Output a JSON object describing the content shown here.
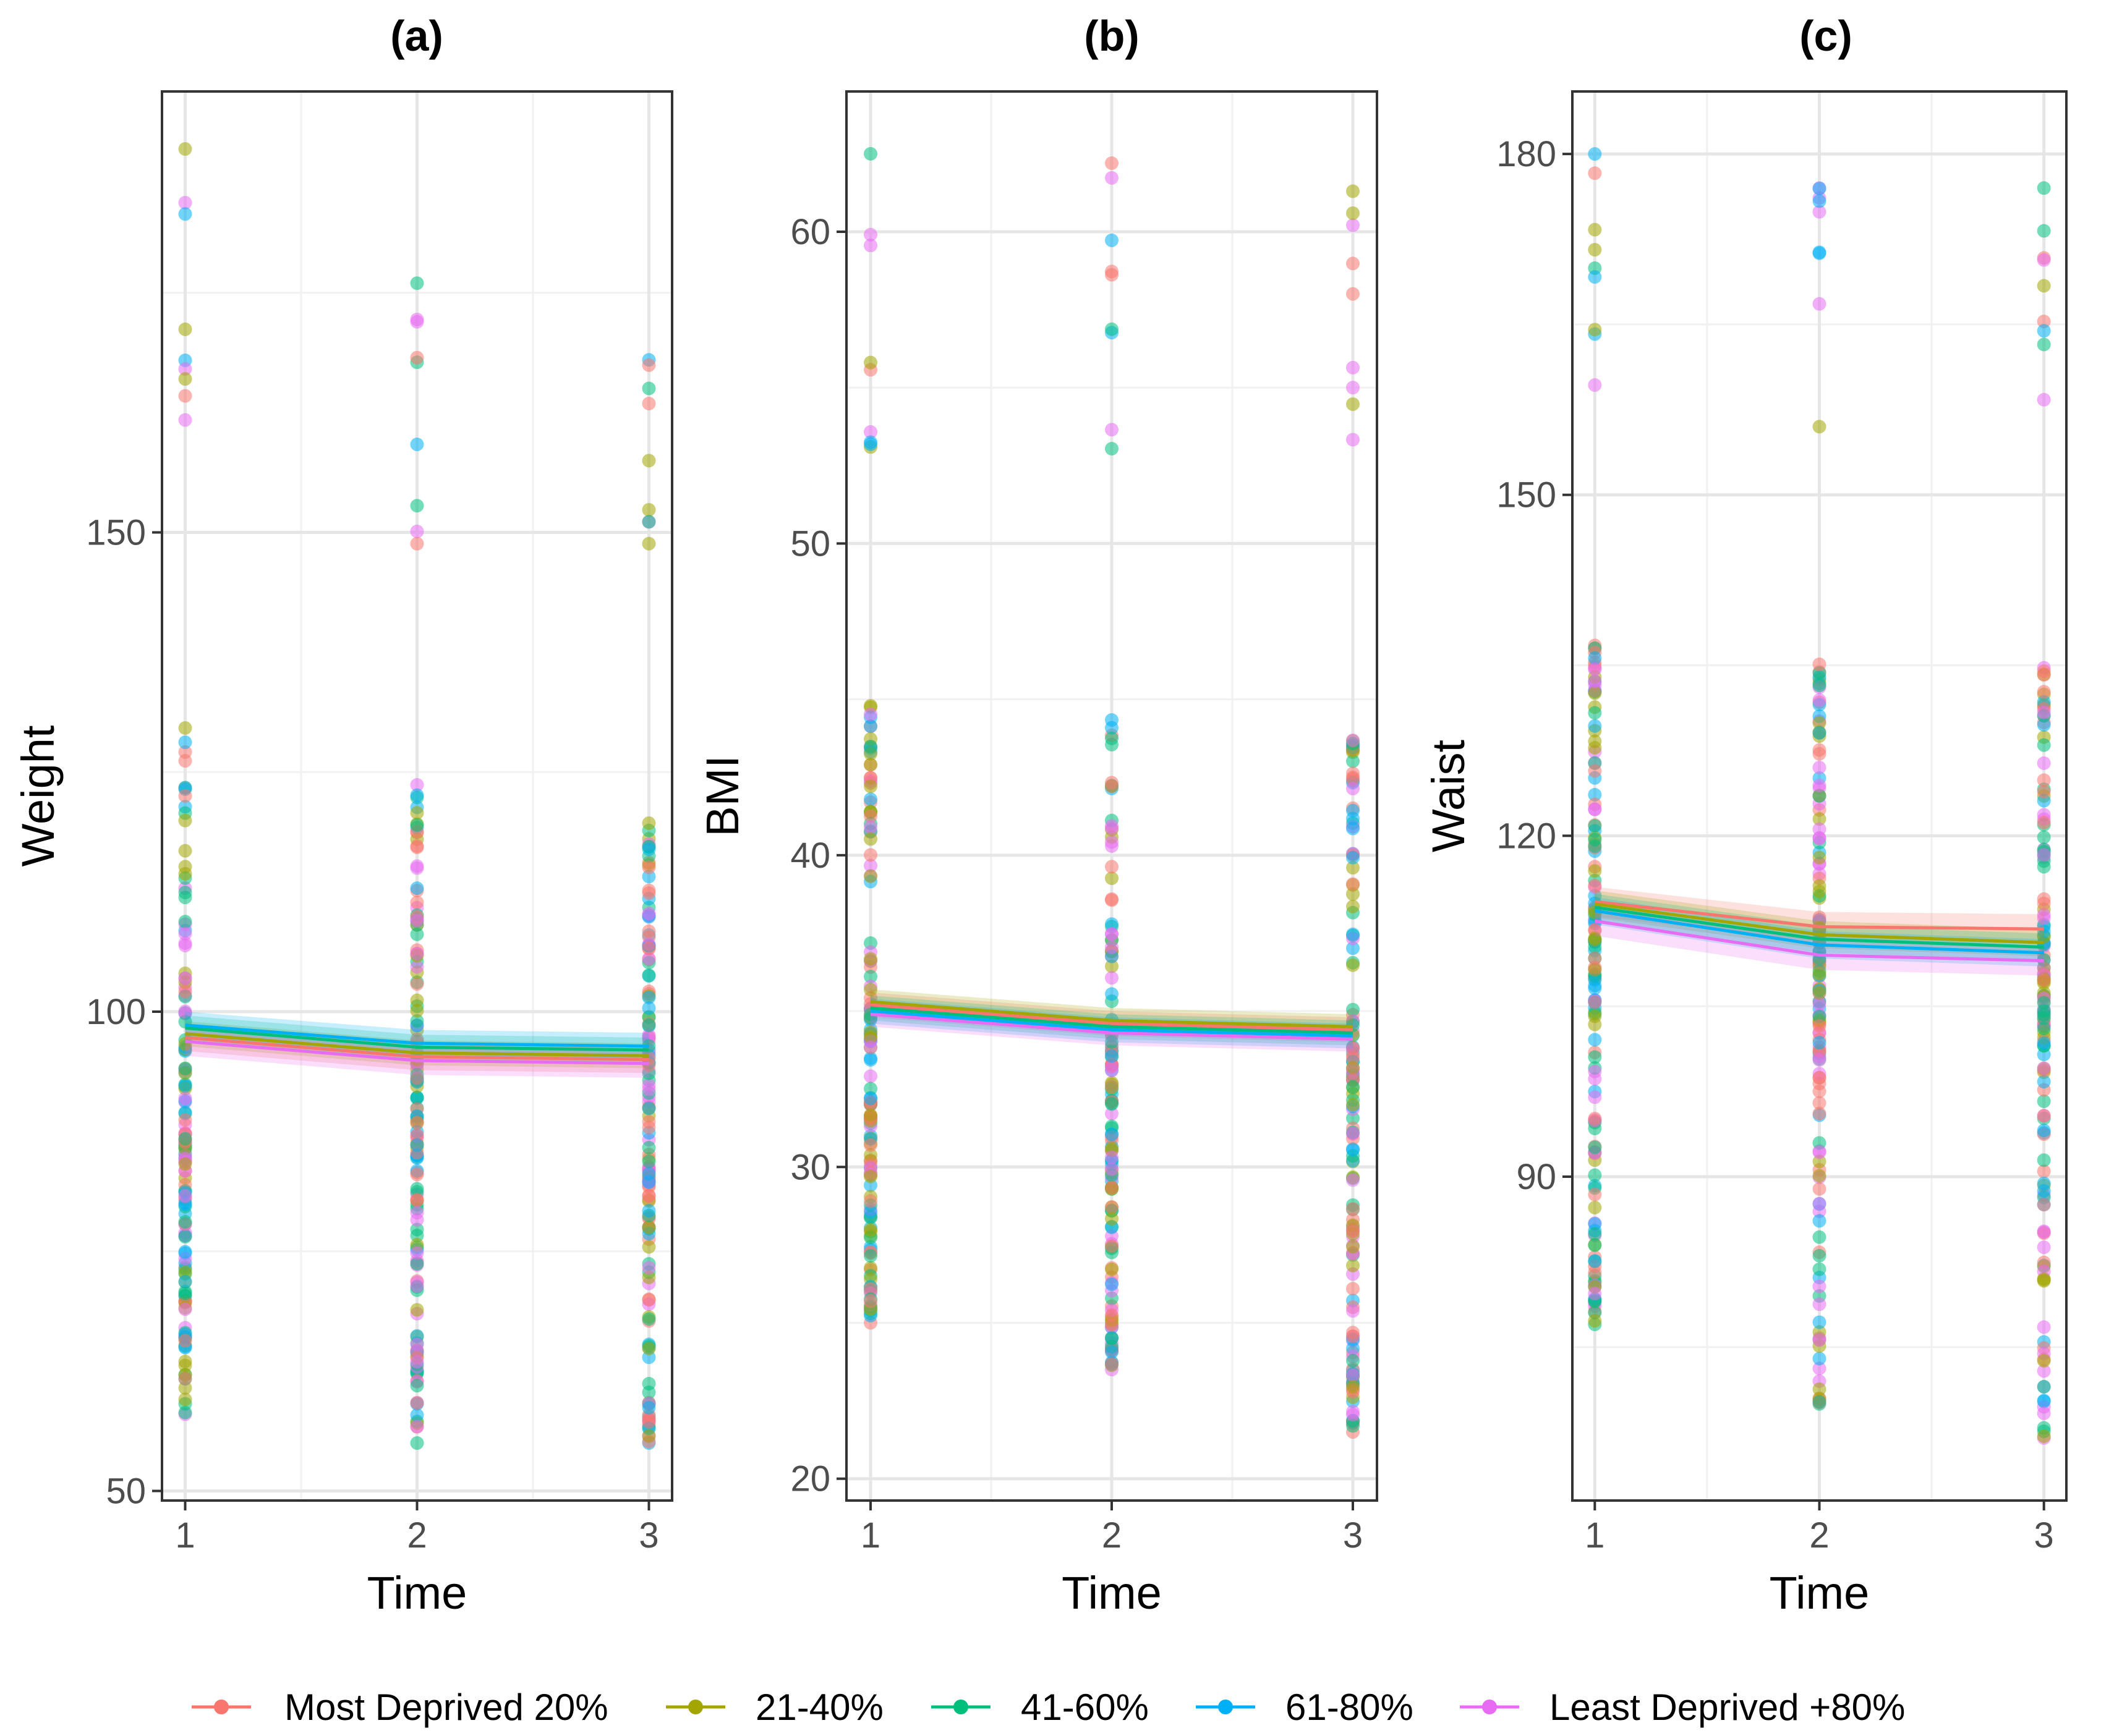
{
  "colors": {
    "most_deprived": "#F8766D",
    "q2": "#A3A500",
    "q3": "#00BF7D",
    "q4": "#00B0F6",
    "least_deprived": "#E76BF3",
    "grid_major": "#e6e6e6",
    "grid_minor": "#f1f1f1",
    "panel_border": "#333333",
    "tick_text": "#4d4d4d"
  },
  "legend": {
    "entries": [
      "Most Deprived 20%",
      "21-40%",
      "41-60%",
      "61-80%",
      "Least Deprived +80%"
    ]
  },
  "chart_data": [
    {
      "type": "line",
      "panel": "a",
      "title": "(a)",
      "xlabel": "Time",
      "ylabel": "Weight",
      "x": [
        1,
        2,
        3
      ],
      "xticks": [
        "1",
        "2",
        "3"
      ],
      "xlim": [
        0.9,
        3.1
      ],
      "ylim": [
        49,
        196
      ],
      "yticks": [
        50,
        100,
        150
      ],
      "ytick_labels": [
        "50",
        "100",
        "150"
      ],
      "grid": true,
      "series": [
        {
          "name": "Most Deprived 20%",
          "values": [
            97.3,
            95.3,
            95.0
          ],
          "ci": [
            1.4,
            1.4,
            1.4
          ]
        },
        {
          "name": "21-40%",
          "values": [
            97.7,
            95.7,
            95.4
          ],
          "ci": [
            1.3,
            1.3,
            1.3
          ]
        },
        {
          "name": "41-60%",
          "values": [
            98.3,
            96.3,
            96.0
          ],
          "ci": [
            1.3,
            1.3,
            1.3
          ]
        },
        {
          "name": "61-80%",
          "values": [
            98.6,
            96.7,
            96.4
          ],
          "ci": [
            1.4,
            1.4,
            1.4
          ]
        },
        {
          "name": "Least Deprived +80%",
          "values": [
            96.9,
            94.9,
            94.6
          ],
          "ci": [
            1.5,
            1.5,
            1.5
          ]
        }
      ],
      "point_range": [
        [
          58,
          190
        ],
        [
          55,
          176
        ],
        [
          55,
          168
        ]
      ]
    },
    {
      "type": "line",
      "panel": "b",
      "title": "(b)",
      "xlabel": "Time",
      "ylabel": "BMI",
      "x": [
        1,
        2,
        3
      ],
      "xticks": [
        "1",
        "2",
        "3"
      ],
      "xlim": [
        0.9,
        3.1
      ],
      "ylim": [
        19.3,
        64.5
      ],
      "yticks": [
        20,
        30,
        40,
        50,
        60
      ],
      "ytick_labels": [
        "20",
        "30",
        "40",
        "50",
        "60"
      ],
      "grid": true,
      "series": [
        {
          "name": "Most Deprived 20%",
          "values": [
            35.2,
            34.6,
            34.4
          ],
          "ci": [
            0.4,
            0.4,
            0.4
          ]
        },
        {
          "name": "21-40%",
          "values": [
            35.3,
            34.7,
            34.5
          ],
          "ci": [
            0.4,
            0.4,
            0.4
          ]
        },
        {
          "name": "41-60%",
          "values": [
            35.1,
            34.5,
            34.3
          ],
          "ci": [
            0.4,
            0.4,
            0.4
          ]
        },
        {
          "name": "61-80%",
          "values": [
            35.0,
            34.4,
            34.2
          ],
          "ci": [
            0.4,
            0.4,
            0.4
          ]
        },
        {
          "name": "Least Deprived +80%",
          "values": [
            34.9,
            34.3,
            34.1
          ],
          "ci": [
            0.4,
            0.4,
            0.4
          ]
        }
      ],
      "point_range": [
        [
          25,
          62.5
        ],
        [
          23.5,
          62.2
        ],
        [
          21.5,
          61.3
        ]
      ]
    },
    {
      "type": "line",
      "panel": "c",
      "title": "(c)",
      "xlabel": "Time",
      "ylabel": "Waist",
      "x": [
        1,
        2,
        3
      ],
      "xticks": [
        "1",
        "2",
        "3"
      ],
      "xlim": [
        0.9,
        3.1
      ],
      "ylim": [
        61.5,
        185.5
      ],
      "yticks": [
        90,
        120,
        150,
        180
      ],
      "ytick_labels": [
        "90",
        "120",
        "150",
        "180"
      ],
      "grid": true,
      "series": [
        {
          "name": "Most Deprived 20%",
          "values": [
            114.2,
            112.0,
            111.8
          ],
          "ci": [
            1.3,
            1.3,
            1.3
          ]
        },
        {
          "name": "21-40%",
          "values": [
            114.0,
            111.3,
            110.6
          ],
          "ci": [
            1.2,
            1.2,
            1.2
          ]
        },
        {
          "name": "41-60%",
          "values": [
            113.7,
            110.9,
            110.2
          ],
          "ci": [
            1.2,
            1.2,
            1.2
          ]
        },
        {
          "name": "61-80%",
          "values": [
            113.4,
            110.4,
            109.7
          ],
          "ci": [
            1.2,
            1.2,
            1.2
          ]
        },
        {
          "name": "Least Deprived +80%",
          "values": [
            112.5,
            109.5,
            109.0
          ],
          "ci": [
            1.3,
            1.3,
            1.3
          ]
        }
      ],
      "point_range": [
        [
          77,
          180
        ],
        [
          70,
          177
        ],
        [
          67,
          177
        ]
      ]
    }
  ]
}
